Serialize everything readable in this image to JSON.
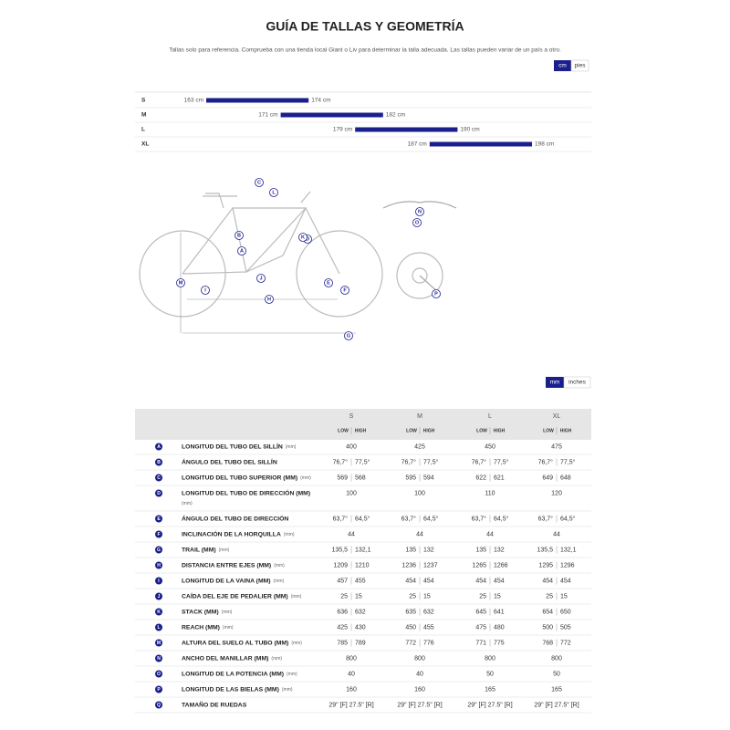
{
  "header": {
    "title": "GUÍA DE TALLAS Y GEOMETRÍA",
    "note": "Tallas solo para referencia. Comprueba con una tienda local Giant o Liv para determinar la talla adecuada. Las tallas pueden variar de un país a otro."
  },
  "size_units": [
    "cm",
    "pies"
  ],
  "size_chart": {
    "rows": [
      {
        "size": "S",
        "min": 163,
        "max": 174,
        "min_label": "163 cm",
        "max_label": "174 cm"
      },
      {
        "size": "M",
        "min": 171,
        "max": 182,
        "min_label": "171 cm",
        "max_label": "182 cm"
      },
      {
        "size": "L",
        "min": 179,
        "max": 190,
        "min_label": "179 cm",
        "max_label": "190 cm"
      },
      {
        "size": "XL",
        "min": 187,
        "max": 198,
        "min_label": "187 cm",
        "max_label": "198 cm"
      }
    ]
  },
  "diagram": {
    "labels": [
      "A",
      "B",
      "C",
      "D",
      "E",
      "F",
      "G",
      "H",
      "I",
      "J",
      "K",
      "L",
      "M",
      "N",
      "O",
      "P"
    ]
  },
  "geometry_units": [
    "mm",
    "inches"
  ],
  "table": {
    "sizes": [
      "S",
      "M",
      "L",
      "XL"
    ],
    "low": "LOW",
    "high": "HIGH",
    "rows": [
      {
        "letter": "A",
        "name": "LONGITUD DEL TUBO DEL SILLÍN",
        "unit": "(mm)",
        "cells": [
          "400",
          "425",
          "450",
          "475"
        ]
      },
      {
        "letter": "B",
        "name": "ÁNGULO DEL TUBO DEL SILLÍN",
        "cells": [
          [
            "76,7°",
            "77,5°"
          ],
          [
            "76,7°",
            "77,5°"
          ],
          [
            "76,7°",
            "77,5°"
          ],
          [
            "76,7°",
            "77,5°"
          ]
        ]
      },
      {
        "letter": "C",
        "name": "LONGITUD DEL TUBO SUPERIOR (MM)",
        "unit": "(mm)",
        "cells": [
          [
            "569",
            "568"
          ],
          [
            "595",
            "594"
          ],
          [
            "622",
            "621"
          ],
          [
            "649",
            "648"
          ]
        ]
      },
      {
        "letter": "D",
        "name": "LONGITUD DEL TUBO DE DIRECCIÓN (MM)",
        "unit": "(mm)",
        "cells": [
          "100",
          "100",
          "110",
          "120"
        ]
      },
      {
        "letter": "E",
        "name": "ÁNGULO DEL TUBO DE DIRECCIÓN",
        "cells": [
          [
            "63,7°",
            "64,5°"
          ],
          [
            "63,7°",
            "64,5°"
          ],
          [
            "63,7°",
            "64,5°"
          ],
          [
            "63,7°",
            "64,5°"
          ]
        ]
      },
      {
        "letter": "F",
        "name": "INCLINACIÓN DE LA HORQUILLA",
        "unit": "(mm)",
        "cells": [
          "44",
          "44",
          "44",
          "44"
        ]
      },
      {
        "letter": "G",
        "name": "TRAIL (MM)",
        "unit": "(mm)",
        "cells": [
          [
            "135,5",
            "132,1"
          ],
          [
            "135",
            "132"
          ],
          [
            "135",
            "132"
          ],
          [
            "135,5",
            "132,1"
          ]
        ]
      },
      {
        "letter": "H",
        "name": "DISTANCIA ENTRE EJES (MM)",
        "unit": "(mm)",
        "cells": [
          [
            "1209",
            "1210"
          ],
          [
            "1236",
            "1237"
          ],
          [
            "1265",
            "1266"
          ],
          [
            "1295",
            "1296"
          ]
        ]
      },
      {
        "letter": "I",
        "name": "LONGITUD DE LA VAINA (MM)",
        "unit": "(mm)",
        "cells": [
          [
            "457",
            "455"
          ],
          [
            "454",
            "454"
          ],
          [
            "454",
            "454"
          ],
          [
            "454",
            "454"
          ]
        ]
      },
      {
        "letter": "J",
        "name": "CAÍDA DEL EJE DE PEDALIER (MM)",
        "unit": "(mm)",
        "cells": [
          [
            "25",
            "15"
          ],
          [
            "25",
            "15"
          ],
          [
            "25",
            "15"
          ],
          [
            "25",
            "15"
          ]
        ]
      },
      {
        "letter": "K",
        "name": "STACK (MM)",
        "unit": "(mm)",
        "cells": [
          [
            "636",
            "632"
          ],
          [
            "635",
            "632"
          ],
          [
            "645",
            "641"
          ],
          [
            "654",
            "650"
          ]
        ]
      },
      {
        "letter": "L",
        "name": "REACH (MM)",
        "unit": "(mm)",
        "cells": [
          [
            "425",
            "430"
          ],
          [
            "450",
            "455"
          ],
          [
            "475",
            "480"
          ],
          [
            "500",
            "505"
          ]
        ]
      },
      {
        "letter": "M",
        "name": "ALTURA DEL SUELO AL TUBO (MM)",
        "unit": "(mm)",
        "cells": [
          [
            "785",
            "789"
          ],
          [
            "772",
            "776"
          ],
          [
            "771",
            "775"
          ],
          [
            "768",
            "772"
          ]
        ]
      },
      {
        "letter": "N",
        "name": "ANCHO DEL MANILLAR (MM)",
        "unit": "(mm)",
        "cells": [
          "800",
          "800",
          "800",
          "800"
        ]
      },
      {
        "letter": "O",
        "name": "LONGITUD DE LA POTENCIA (MM)",
        "unit": "(mm)",
        "cells": [
          "40",
          "40",
          "50",
          "50"
        ]
      },
      {
        "letter": "P",
        "name": "LONGITUD DE LAS BIELAS (MM)",
        "unit": "(mm)",
        "cells": [
          "160",
          "160",
          "165",
          "165"
        ]
      },
      {
        "letter": "Q",
        "name": "TAMAÑO DE RUEDAS",
        "cells": [
          "29\" [F] 27.5\" [R]",
          "29\" [F] 27.5\" [R]",
          "29\" [F] 27.5\" [R]",
          "29\" [F] 27.5\" [R]"
        ]
      }
    ]
  }
}
